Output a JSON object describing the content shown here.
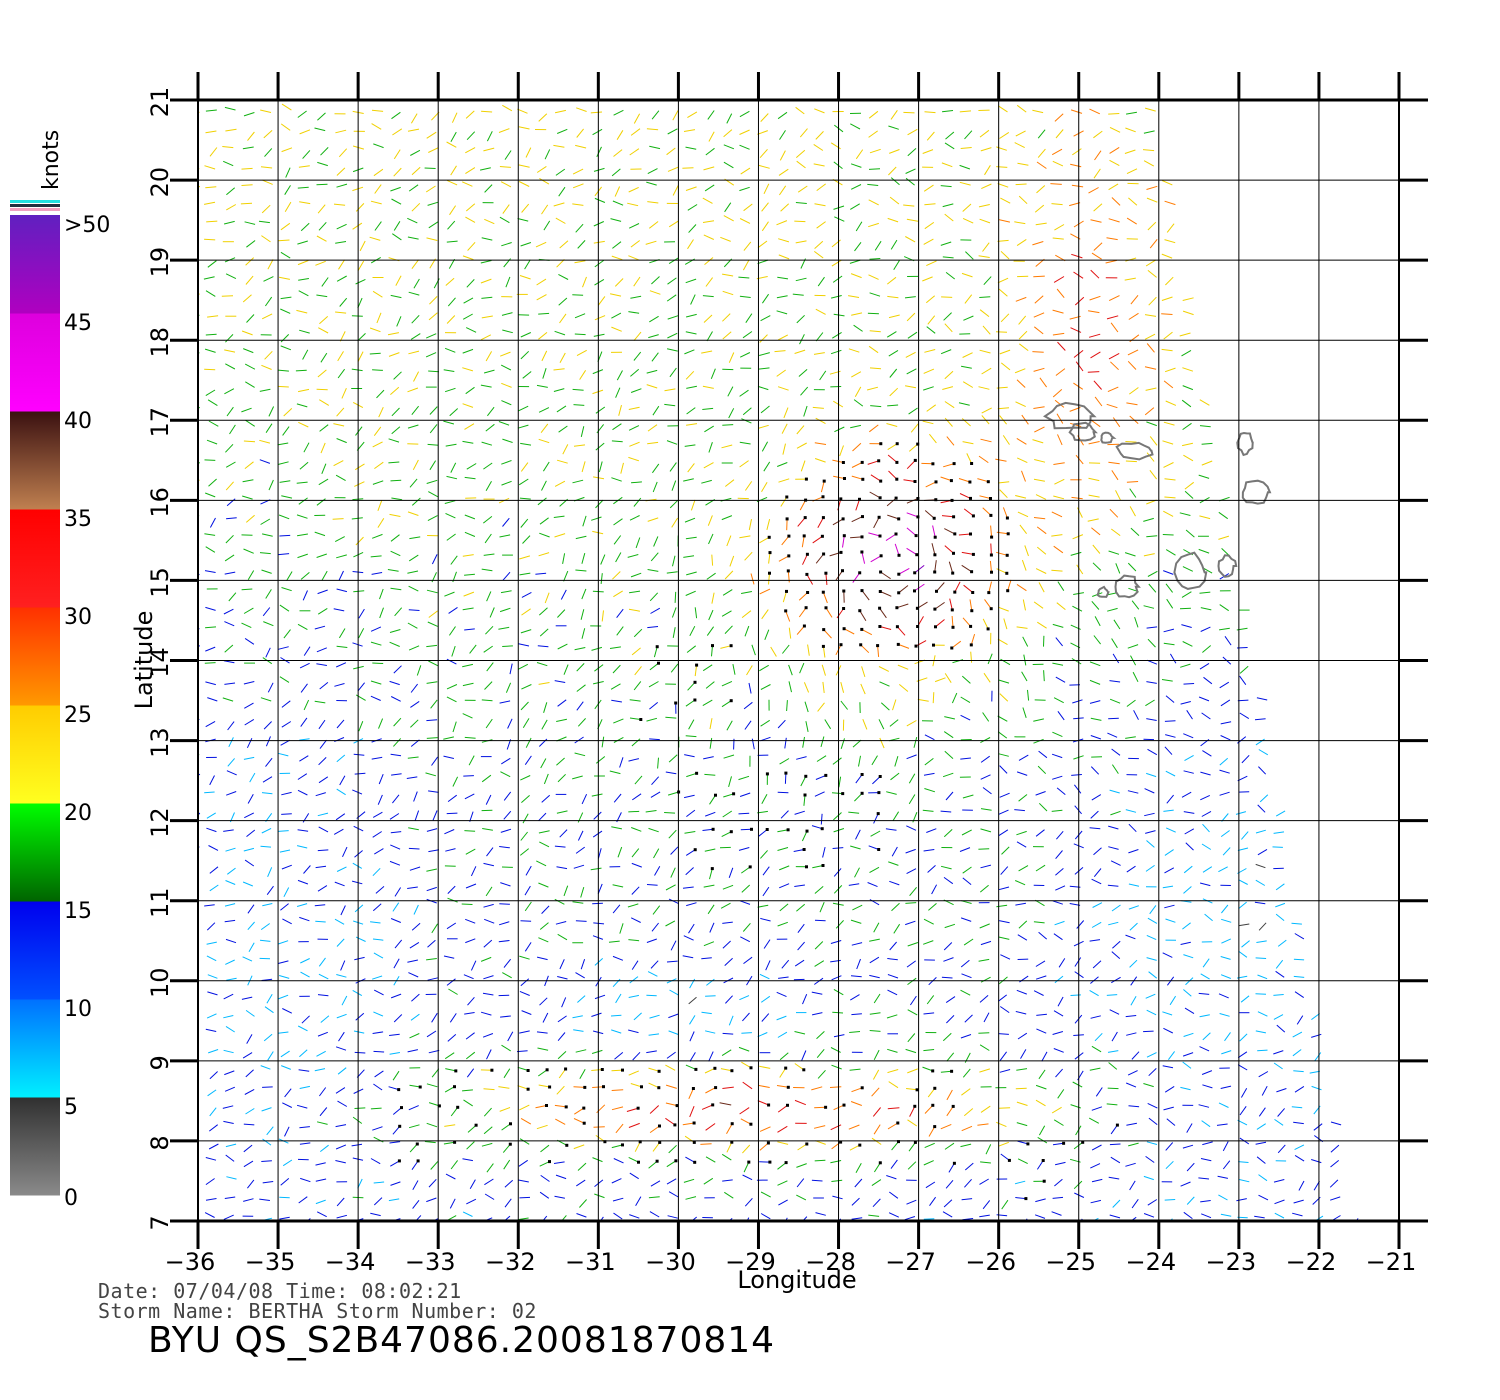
{
  "chart_data": {
    "type": "wind-vector-map",
    "xlabel": "Longitude",
    "ylabel": "Latitude",
    "xlim": [
      -36,
      -21
    ],
    "ylim": [
      7,
      21
    ],
    "x_ticks": [
      "−36",
      "−35",
      "−34",
      "−33",
      "−32",
      "−31",
      "−30",
      "−29",
      "−28",
      "−27",
      "−26",
      "−25",
      "−24",
      "−23",
      "−22",
      "−21"
    ],
    "y_ticks": [
      "7",
      "8",
      "9",
      "10",
      "11",
      "12",
      "13",
      "14",
      "15",
      "16",
      "17",
      "18",
      "19",
      "20",
      "21"
    ],
    "grid": true,
    "colorbar": {
      "unit": "knots",
      "ticks": [
        "0",
        "5",
        "10",
        "15",
        "20",
        "25",
        "30",
        "35",
        "40",
        "45",
        ">50"
      ],
      "bands": [
        {
          "from": 0,
          "to": 5,
          "colors": [
            "#8a8a8a",
            "#303030"
          ]
        },
        {
          "from": 5,
          "to": 10,
          "colors": [
            "#00f0ff",
            "#0070ff"
          ]
        },
        {
          "from": 10,
          "to": 15,
          "colors": [
            "#0050ff",
            "#0000ee"
          ]
        },
        {
          "from": 15,
          "to": 20,
          "colors": [
            "#006400",
            "#00ff00"
          ]
        },
        {
          "from": 20,
          "to": 25,
          "colors": [
            "#ffff20",
            "#ffcc00"
          ]
        },
        {
          "from": 25,
          "to": 30,
          "colors": [
            "#ff9900",
            "#ff3000"
          ]
        },
        {
          "from": 30,
          "to": 35,
          "colors": [
            "#ff2020",
            "#ff0000"
          ]
        },
        {
          "from": 35,
          "to": 40,
          "colors": [
            "#c08050",
            "#3a1010"
          ]
        },
        {
          "from": 40,
          "to": 45,
          "colors": [
            "#ff00ff",
            "#dd00dd"
          ]
        },
        {
          "from": 45,
          "to": 50,
          "colors": [
            "#b000c0",
            "#6020c0"
          ]
        }
      ]
    },
    "storm_center": {
      "lon": -27.3,
      "lat": 15.3
    },
    "swath_right_edge": [
      [
        -24,
        21
      ],
      [
        -21.5,
        7
      ]
    ],
    "islands": [
      {
        "name": "Santo Antao",
        "lon": -25.1,
        "lat": 17.05
      },
      {
        "name": "Sao Vicente",
        "lon": -24.95,
        "lat": 16.85
      },
      {
        "name": "Santa Luzia",
        "lon": -24.65,
        "lat": 16.78
      },
      {
        "name": "Sao Nicolau",
        "lon": -24.3,
        "lat": 16.62
      },
      {
        "name": "Sal",
        "lon": -22.92,
        "lat": 16.72
      },
      {
        "name": "Boa Vista",
        "lon": -22.8,
        "lat": 16.1
      },
      {
        "name": "Maio",
        "lon": -23.15,
        "lat": 15.18
      },
      {
        "name": "Santiago",
        "lon": -23.6,
        "lat": 15.1
      },
      {
        "name": "Fogo",
        "lon": -24.4,
        "lat": 14.92
      },
      {
        "name": "Brava",
        "lon": -24.7,
        "lat": 14.85
      }
    ]
  },
  "meta": {
    "date_line": "Date: 07/04/08   Time: 08:02:21",
    "storm_line": "Storm  Name:  BERTHA    Storm  Number:  02",
    "id_line": "BYU  QS_S2B47086.20081870814"
  }
}
